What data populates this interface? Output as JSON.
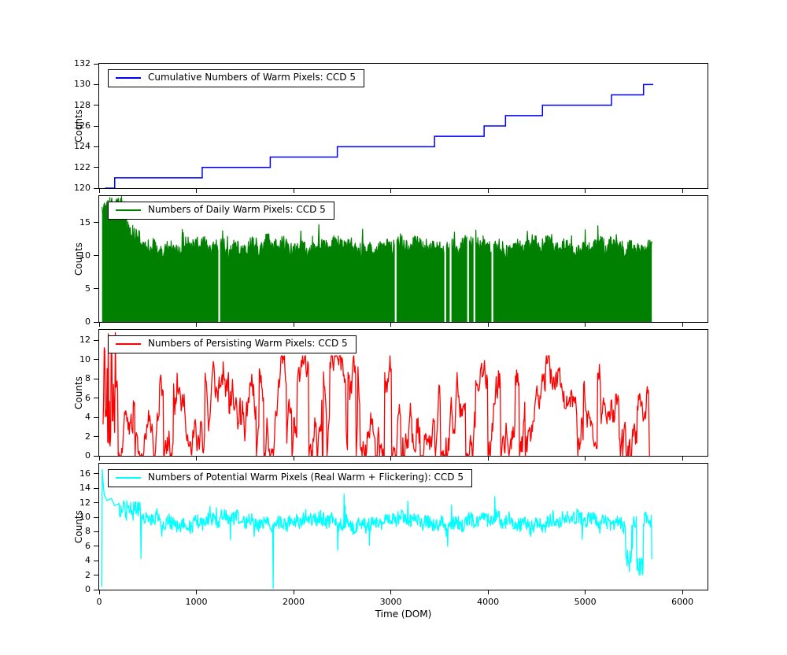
{
  "figure": {
    "background": "#ffffff",
    "xlabel": "Time (DOM)"
  },
  "chart_data": [
    {
      "type": "line",
      "subtype": "step",
      "legend": "Cumulative Numbers of Warm Pixels: CCD 5",
      "ylabel": "Counts",
      "color": "#0000ff",
      "grid": false,
      "legend_position": "upper left",
      "ylim": [
        120,
        132
      ],
      "yticks": [
        120,
        122,
        124,
        126,
        128,
        130,
        132
      ],
      "xlim": [
        0,
        6258
      ],
      "xticks": [
        0,
        1000,
        2000,
        3000,
        4000,
        5000,
        6000
      ],
      "series": {
        "kind": "step",
        "x": [
          60,
          160,
          1060,
          1760,
          2450,
          3450,
          3960,
          4180,
          4560,
          5270,
          5600
        ],
        "y": [
          120,
          121,
          122,
          123,
          124,
          125,
          126,
          127,
          128,
          129,
          130
        ],
        "x_end": 5700
      }
    },
    {
      "type": "line",
      "subtype": "noisy-filled",
      "legend": "Numbers of Daily Warm Pixels: CCD 5",
      "ylabel": "Counts",
      "color": "#008000",
      "fill": true,
      "legend_position": "upper left",
      "ylim": [
        0,
        19
      ],
      "yticks": [
        0,
        5,
        10,
        15
      ],
      "xlim": [
        0,
        6258
      ],
      "xticks": [
        0,
        1000,
        2000,
        3000,
        4000,
        5000,
        6000
      ],
      "series": {
        "kind": "jitter",
        "x_start": 30,
        "x_end": 5685,
        "dx": 5,
        "base": 11.2,
        "noise": 1.3,
        "waves": [
          {
            "amp": 0.5,
            "period": 700
          },
          {
            "amp": 0.4,
            "period": 170
          }
        ],
        "spike_prob": 0.03,
        "spike_max": 2.8,
        "dip_prob": 0.025,
        "dip_max": 4.5,
        "clip": [
          0.3,
          15.3
        ],
        "seed": 11,
        "segments": [
          {
            "from": 30,
            "to": 280,
            "lo": 16.2,
            "hi": 19.0
          },
          {
            "from": 280,
            "to": 420,
            "lo": 11.5,
            "hi": 15.2
          }
        ],
        "gaps": [
          1235,
          3050,
          3560,
          3615,
          3795,
          3860,
          4045
        ]
      }
    },
    {
      "type": "line",
      "subtype": "noisy",
      "legend": "Numbers of Persisting Warm Pixels: CCD 5",
      "ylabel": "Counts",
      "color": "#ff0000",
      "legend_position": "upper left",
      "ylim": [
        0,
        13.1
      ],
      "yticks": [
        0,
        2,
        4,
        6,
        8,
        10,
        12
      ],
      "xlim": [
        0,
        6258
      ],
      "xticks": [
        0,
        1000,
        2000,
        3000,
        4000,
        5000,
        6000
      ],
      "series": {
        "kind": "walk",
        "x_start": 40,
        "x_end": 5655,
        "dx": 6,
        "start": 6,
        "step": 1.7,
        "clip": [
          0,
          10.4
        ],
        "zero_prob": 0.05,
        "jump_prob": 0.05,
        "seed": 23,
        "segments": [
          {
            "from": 40,
            "to": 170,
            "lo": 0.0,
            "hi": 12.9
          }
        ],
        "end_value": 0
      }
    },
    {
      "type": "line",
      "subtype": "noisy",
      "legend": "Numbers of Potential Warm Pixels (Real Warm + Flickering): CCD 5",
      "ylabel": "Counts",
      "xlabel": "Time (DOM)",
      "color": "#00ffff",
      "legend_position": "upper left",
      "ylim": [
        0,
        17.4
      ],
      "yticks": [
        0,
        2,
        4,
        6,
        8,
        10,
        12,
        14,
        16
      ],
      "xlim": [
        0,
        6258
      ],
      "xticks": [
        0,
        1000,
        2000,
        3000,
        4000,
        5000,
        6000
      ],
      "series": {
        "kind": "jitter",
        "x_start": 28,
        "x_end": 5685,
        "dx": 5,
        "base": 9.4,
        "noise": 1.0,
        "waves": [
          {
            "amp": 0.5,
            "period": 900
          },
          {
            "amp": 0.35,
            "period": 140
          }
        ],
        "spike_prob": 0.02,
        "spike_max": 2.6,
        "dip_prob": 0.02,
        "dip_max": 3.5,
        "clip": [
          0.4,
          13.4
        ],
        "seed": 5,
        "head_points": [
          [
            28,
            0.4
          ],
          [
            32,
            16.6
          ],
          [
            38,
            15.2
          ],
          [
            52,
            13.1
          ],
          [
            80,
            12.3
          ],
          [
            125,
            12.6
          ],
          [
            160,
            11.6
          ],
          [
            205,
            11.9
          ]
        ],
        "segments": [
          {
            "from": 210,
            "to": 430,
            "lo": 9.5,
            "hi": 12.3
          },
          {
            "from": 5420,
            "to": 5475,
            "lo": 2.2,
            "hi": 5.5
          },
          {
            "from": 5530,
            "to": 5595,
            "lo": 1.8,
            "hi": 5.0
          }
        ],
        "points": [
          [
            430,
            4.3
          ],
          [
            1790,
            0.2
          ],
          [
            1800,
            8.5
          ],
          [
            2520,
            13.2
          ],
          [
            5685,
            4.2
          ]
        ]
      }
    }
  ]
}
